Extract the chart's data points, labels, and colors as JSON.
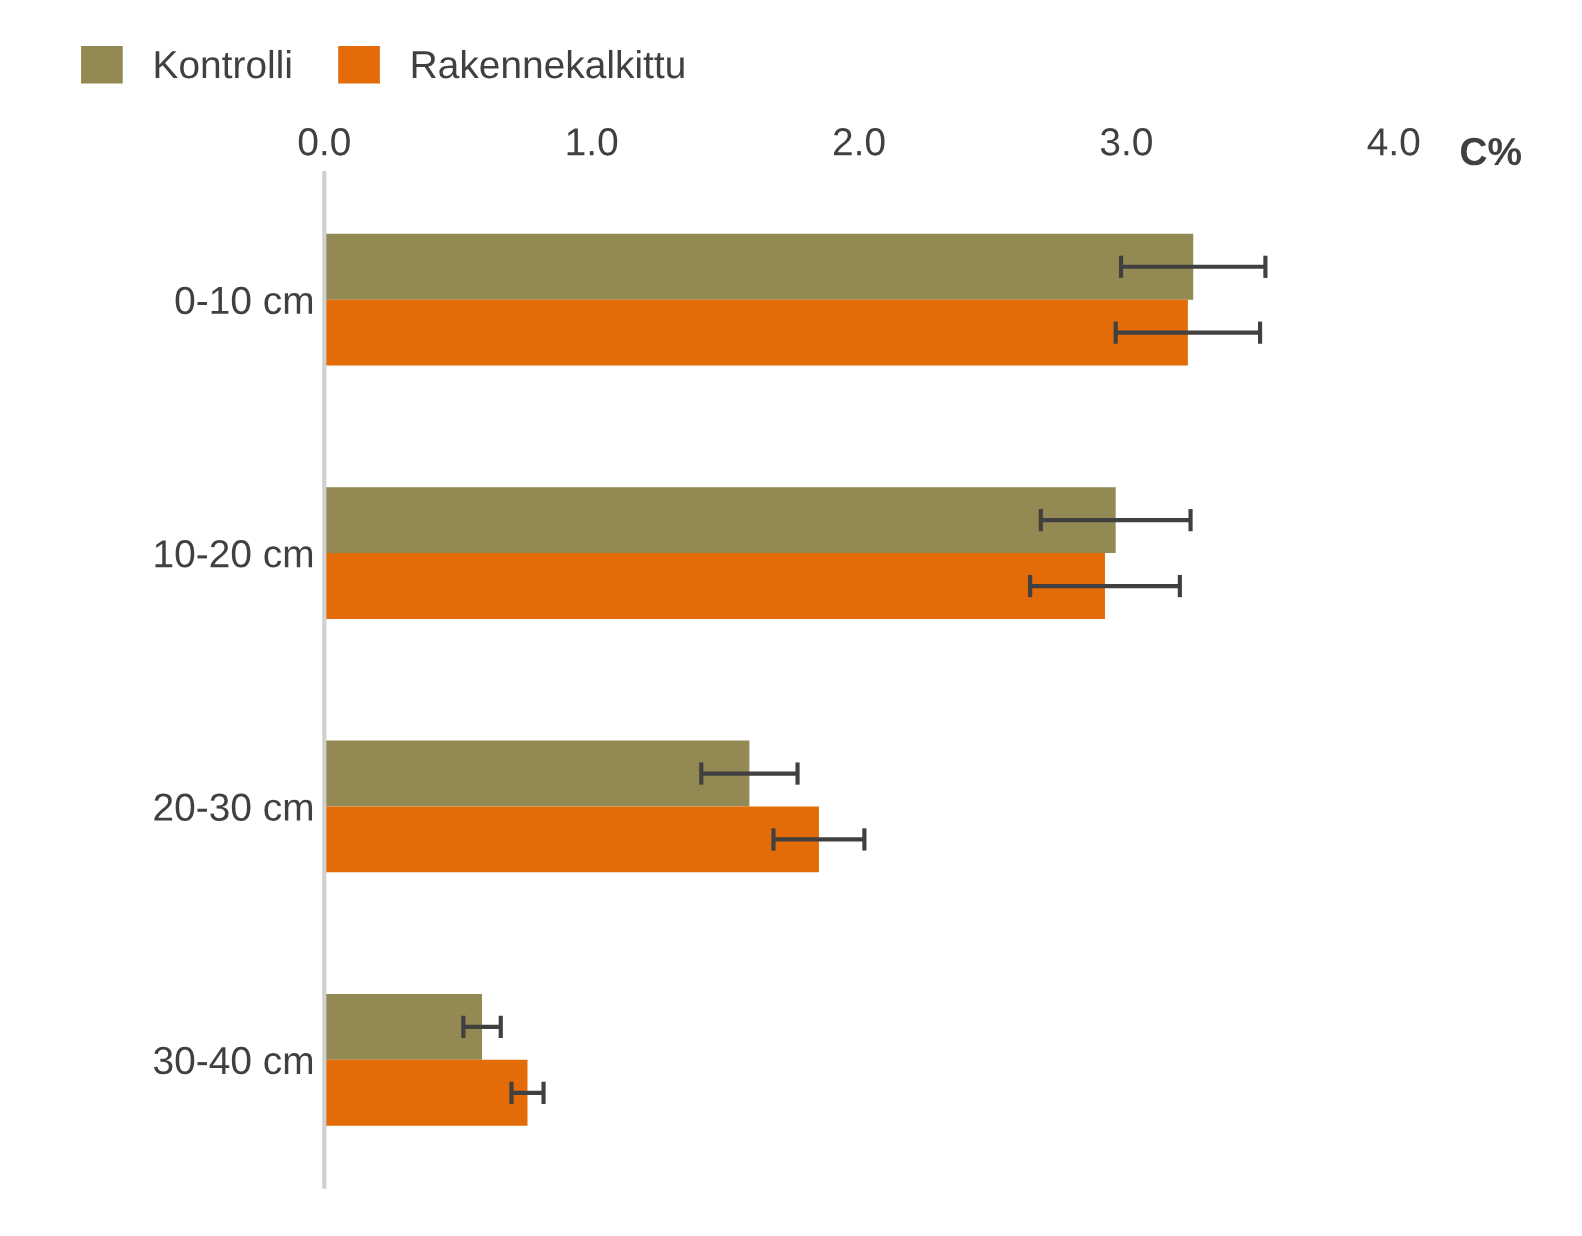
{
  "chart_data": {
    "type": "bar",
    "orientation": "horizontal",
    "xlabel": "C%",
    "categories": [
      "0-10 cm",
      "10-20 cm",
      "20-30 cm",
      "30-40 cm"
    ],
    "series": [
      {
        "name": "Kontrolli",
        "color": "#938953",
        "values": [
          3.25,
          2.96,
          1.59,
          0.59
        ],
        "errors": [
          0.27,
          0.28,
          0.18,
          0.07
        ]
      },
      {
        "name": "Rakennekalkittu",
        "color": "#e36c09",
        "values": [
          3.23,
          2.92,
          1.85,
          0.76
        ],
        "errors": [
          0.27,
          0.28,
          0.17,
          0.06
        ]
      }
    ],
    "xlim": [
      0,
      4
    ],
    "xticks": [
      {
        "value": 0,
        "label": "0.0"
      },
      {
        "value": 1,
        "label": "1.0"
      },
      {
        "value": 2,
        "label": "2.0"
      },
      {
        "value": 3,
        "label": "3.0"
      },
      {
        "value": 4,
        "label": "4.0"
      }
    ],
    "grid": false,
    "legend": "top left"
  }
}
